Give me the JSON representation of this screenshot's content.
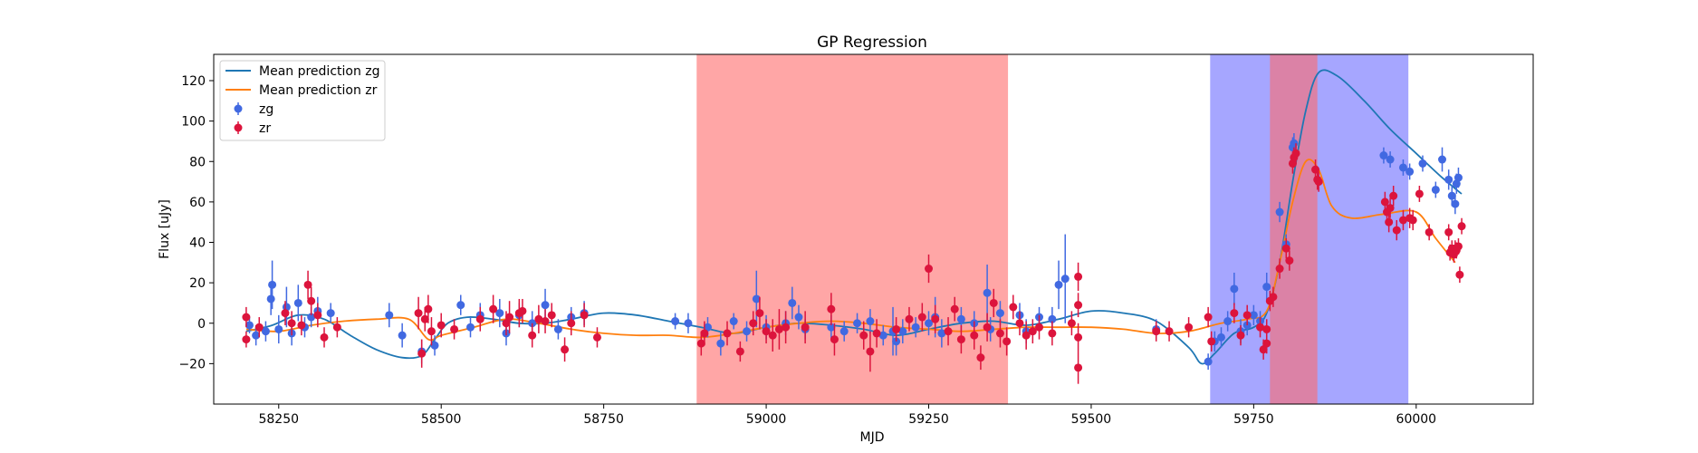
{
  "chart_data": {
    "type": "scatter",
    "title": "GP Regression",
    "xlabel": "MJD",
    "ylabel": "Flux [uJy]",
    "xlim": [
      58150,
      60180
    ],
    "ylim": [
      -40,
      133
    ],
    "xticks": [
      58250,
      58500,
      58750,
      59000,
      59250,
      59500,
      59750,
      60000
    ],
    "yticks": [
      -20,
      0,
      20,
      40,
      60,
      80,
      100,
      120
    ],
    "grid": false,
    "legend_position": "top-left",
    "shaded_regions": [
      {
        "x0": 58893,
        "x1": 59372,
        "color": "#ff6b6b",
        "opacity": 0.6
      },
      {
        "x0": 59683,
        "x1": 59988,
        "color": "#6b6bff",
        "opacity": 0.6
      },
      {
        "x0": 59775,
        "x1": 59848,
        "color": "#ff6b6b",
        "opacity": 0.6
      }
    ],
    "lines": [
      {
        "name": "Mean prediction zg",
        "color": "#1f77b4",
        "x": [
          58200,
          58240,
          58280,
          58320,
          58360,
          58400,
          58440,
          58470,
          58490,
          58510,
          58540,
          58580,
          58620,
          58660,
          58700,
          58750,
          58800,
          58850,
          58900,
          58950,
          59000,
          59050,
          59100,
          59150,
          59200,
          59250,
          59300,
          59350,
          59400,
          59450,
          59500,
          59550,
          59600,
          59650,
          59670,
          59690,
          59720,
          59750,
          59770,
          59790,
          59810,
          59830,
          59850,
          59880,
          59920,
          59960,
          60000,
          60040,
          60070
        ],
        "y": [
          -4,
          -1,
          4,
          2,
          -6,
          -13,
          -17,
          -16,
          -8,
          0,
          3,
          2,
          0,
          0,
          2,
          5,
          4,
          1,
          -2,
          -5,
          -2,
          0,
          -1,
          -3,
          -6,
          -3,
          0,
          1,
          -1,
          2,
          6,
          5,
          1,
          -12,
          -20,
          -15,
          -5,
          -2,
          5,
          30,
          70,
          105,
          124,
          122,
          110,
          96,
          84,
          72,
          64
        ]
      },
      {
        "name": "Mean prediction zr",
        "color": "#ff7f0e",
        "x": [
          58200,
          58250,
          58300,
          58350,
          58400,
          58450,
          58480,
          58500,
          58550,
          58600,
          58650,
          58700,
          58750,
          58800,
          58850,
          58900,
          58950,
          59000,
          59050,
          59100,
          59150,
          59200,
          59250,
          59300,
          59350,
          59400,
          59450,
          59500,
          59550,
          59600,
          59650,
          59700,
          59740,
          59770,
          59790,
          59810,
          59830,
          59850,
          59870,
          59900,
          59950,
          60000,
          60030,
          60060
        ],
        "y": [
          -3,
          -4,
          -1,
          1,
          2,
          2,
          -8,
          -6,
          -2,
          2,
          0,
          -3,
          -5,
          -6,
          -6,
          -7,
          -5,
          -2,
          0,
          1,
          0,
          -2,
          -3,
          -4,
          -3,
          -2,
          -2,
          -2,
          -3,
          -5,
          -4,
          0,
          2,
          6,
          30,
          60,
          80,
          76,
          58,
          52,
          54,
          55,
          42,
          30
        ]
      }
    ],
    "series": [
      {
        "name": "zg",
        "color": "#4169e1",
        "points": [
          [
            58205,
            -1,
            4
          ],
          [
            58215,
            -6,
            5
          ],
          [
            58230,
            -4,
            5
          ],
          [
            58240,
            19,
            12
          ],
          [
            58238,
            12,
            8
          ],
          [
            58250,
            -3,
            7
          ],
          [
            58262,
            8,
            10
          ],
          [
            58270,
            -5,
            6
          ],
          [
            58280,
            10,
            9
          ],
          [
            58290,
            -2,
            5
          ],
          [
            58300,
            3,
            5
          ],
          [
            58310,
            6,
            7
          ],
          [
            58330,
            5,
            5
          ],
          [
            58420,
            4,
            6
          ],
          [
            58440,
            -6,
            6
          ],
          [
            58470,
            -14,
            6
          ],
          [
            58490,
            -11,
            5
          ],
          [
            58530,
            9,
            5
          ],
          [
            58545,
            -2,
            5
          ],
          [
            58560,
            4,
            6
          ],
          [
            58590,
            5,
            7
          ],
          [
            58600,
            -5,
            6
          ],
          [
            58620,
            4,
            6
          ],
          [
            58640,
            0,
            6
          ],
          [
            58660,
            9,
            8
          ],
          [
            58680,
            -3,
            5
          ],
          [
            58700,
            3,
            5
          ],
          [
            58720,
            5,
            6
          ],
          [
            58860,
            1,
            4
          ],
          [
            58880,
            0,
            5
          ],
          [
            58910,
            -2,
            5
          ],
          [
            58930,
            -10,
            6
          ],
          [
            58950,
            1,
            4
          ],
          [
            58970,
            -4,
            5
          ],
          [
            58985,
            12,
            14
          ],
          [
            59000,
            -2,
            6
          ],
          [
            59030,
            0,
            6
          ],
          [
            59040,
            10,
            8
          ],
          [
            59050,
            3,
            6
          ],
          [
            59060,
            -3,
            5
          ],
          [
            59100,
            -2,
            6
          ],
          [
            59120,
            -4,
            5
          ],
          [
            59140,
            0,
            5
          ],
          [
            59160,
            1,
            6
          ],
          [
            59180,
            -6,
            5
          ],
          [
            59195,
            -4,
            12
          ],
          [
            59200,
            -9,
            7
          ],
          [
            59210,
            -4,
            6
          ],
          [
            59230,
            -2,
            5
          ],
          [
            59250,
            0,
            6
          ],
          [
            59260,
            3,
            10
          ],
          [
            59270,
            -5,
            7
          ],
          [
            59300,
            2,
            6
          ],
          [
            59320,
            0,
            6
          ],
          [
            59340,
            15,
            14
          ],
          [
            59345,
            -3,
            6
          ],
          [
            59360,
            5,
            6
          ],
          [
            59390,
            4,
            6
          ],
          [
            59400,
            -4,
            6
          ],
          [
            59420,
            3,
            5
          ],
          [
            59440,
            2,
            6
          ],
          [
            59450,
            19,
            12
          ],
          [
            59460,
            22,
            22
          ],
          [
            59600,
            -3,
            5
          ],
          [
            59680,
            -19,
            4
          ],
          [
            59690,
            -9,
            5
          ],
          [
            59700,
            -7,
            5
          ],
          [
            59710,
            1,
            5
          ],
          [
            59720,
            17,
            8
          ],
          [
            59730,
            -4,
            6
          ],
          [
            59740,
            -1,
            5
          ],
          [
            59750,
            4,
            5
          ],
          [
            59760,
            1,
            5
          ],
          [
            59770,
            18,
            7
          ],
          [
            59790,
            55,
            5
          ],
          [
            59800,
            39,
            5
          ],
          [
            59810,
            87,
            5
          ],
          [
            59812,
            89,
            5
          ],
          [
            59950,
            83,
            4
          ],
          [
            59960,
            81,
            4
          ],
          [
            59980,
            77,
            4
          ],
          [
            59990,
            75,
            4
          ],
          [
            60010,
            79,
            4
          ],
          [
            60030,
            66,
            4
          ],
          [
            60040,
            81,
            6
          ],
          [
            60050,
            71,
            5
          ],
          [
            60055,
            63,
            5
          ],
          [
            60060,
            59,
            5
          ],
          [
            60062,
            69,
            5
          ],
          [
            60065,
            72,
            5
          ]
        ]
      },
      {
        "name": "zr",
        "color": "#dc143c",
        "points": [
          [
            58200,
            3,
            5
          ],
          [
            58200,
            -8,
            4
          ],
          [
            58220,
            -2,
            5
          ],
          [
            58260,
            5,
            6
          ],
          [
            58270,
            0,
            6
          ],
          [
            58285,
            -1,
            5
          ],
          [
            58295,
            19,
            7
          ],
          [
            58300,
            11,
            7
          ],
          [
            58310,
            4,
            6
          ],
          [
            58320,
            -7,
            5
          ],
          [
            58340,
            -2,
            5
          ],
          [
            58465,
            5,
            8
          ],
          [
            58470,
            -15,
            7
          ],
          [
            58475,
            2,
            6
          ],
          [
            58480,
            7,
            7
          ],
          [
            58485,
            -4,
            7
          ],
          [
            58500,
            -1,
            6
          ],
          [
            58520,
            -3,
            5
          ],
          [
            58560,
            2,
            6
          ],
          [
            58580,
            7,
            7
          ],
          [
            58600,
            0,
            6
          ],
          [
            58605,
            3,
            8
          ],
          [
            58620,
            5,
            7
          ],
          [
            58625,
            6,
            6
          ],
          [
            58640,
            -6,
            6
          ],
          [
            58650,
            2,
            7
          ],
          [
            58660,
            1,
            6
          ],
          [
            58670,
            4,
            6
          ],
          [
            58690,
            -13,
            6
          ],
          [
            58700,
            0,
            6
          ],
          [
            58720,
            4,
            6
          ],
          [
            58740,
            -7,
            5
          ],
          [
            58900,
            -10,
            6
          ],
          [
            58905,
            -5,
            6
          ],
          [
            58940,
            -5,
            6
          ],
          [
            58960,
            -14,
            5
          ],
          [
            58980,
            0,
            6
          ],
          [
            58990,
            5,
            8
          ],
          [
            59000,
            -4,
            6
          ],
          [
            59010,
            -6,
            8
          ],
          [
            59020,
            -3,
            10
          ],
          [
            59030,
            -2,
            8
          ],
          [
            59060,
            -2,
            8
          ],
          [
            59100,
            7,
            8
          ],
          [
            59105,
            -8,
            8
          ],
          [
            59150,
            -6,
            7
          ],
          [
            59160,
            -14,
            10
          ],
          [
            59170,
            -5,
            7
          ],
          [
            59200,
            -3,
            6
          ],
          [
            59220,
            2,
            6
          ],
          [
            59240,
            3,
            7
          ],
          [
            59250,
            27,
            7
          ],
          [
            59260,
            2,
            7
          ],
          [
            59280,
            -4,
            7
          ],
          [
            59290,
            7,
            6
          ],
          [
            59300,
            -8,
            7
          ],
          [
            59320,
            -6,
            7
          ],
          [
            59330,
            -17,
            6
          ],
          [
            59340,
            -2,
            7
          ],
          [
            59350,
            10,
            7
          ],
          [
            59360,
            -5,
            7
          ],
          [
            59370,
            -9,
            7
          ],
          [
            59380,
            8,
            6
          ],
          [
            59390,
            0,
            6
          ],
          [
            59400,
            -6,
            7
          ],
          [
            59410,
            -4,
            6
          ],
          [
            59420,
            -2,
            6
          ],
          [
            59440,
            -5,
            6
          ],
          [
            59470,
            0,
            6
          ],
          [
            59480,
            9,
            6
          ],
          [
            59480,
            -7,
            7
          ],
          [
            59480,
            -22,
            8
          ],
          [
            59480,
            23,
            7
          ],
          [
            59600,
            -4,
            5
          ],
          [
            59620,
            -4,
            5
          ],
          [
            59650,
            -2,
            5
          ],
          [
            59680,
            3,
            5
          ],
          [
            59685,
            -9,
            5
          ],
          [
            59720,
            5,
            5
          ],
          [
            59730,
            -6,
            5
          ],
          [
            59740,
            4,
            5
          ],
          [
            59760,
            -2,
            5
          ],
          [
            59765,
            -13,
            5
          ],
          [
            59770,
            -3,
            5
          ],
          [
            59770,
            -10,
            5
          ],
          [
            59775,
            11,
            5
          ],
          [
            59780,
            13,
            5
          ],
          [
            59790,
            27,
            5
          ],
          [
            59800,
            37,
            5
          ],
          [
            59805,
            31,
            5
          ],
          [
            59810,
            79,
            5
          ],
          [
            59812,
            82,
            5
          ],
          [
            59815,
            84,
            5
          ],
          [
            59845,
            76,
            5
          ],
          [
            59848,
            71,
            5
          ],
          [
            59850,
            70,
            5
          ],
          [
            59952,
            60,
            5
          ],
          [
            59955,
            55,
            5
          ],
          [
            59958,
            50,
            5
          ],
          [
            59960,
            57,
            5
          ],
          [
            59965,
            63,
            5
          ],
          [
            59970,
            46,
            5
          ],
          [
            59980,
            51,
            5
          ],
          [
            59990,
            52,
            5
          ],
          [
            59995,
            51,
            5
          ],
          [
            60005,
            64,
            4
          ],
          [
            60020,
            45,
            4
          ],
          [
            60050,
            45,
            4
          ],
          [
            60052,
            35,
            4
          ],
          [
            60055,
            37,
            4
          ],
          [
            60058,
            34,
            4
          ],
          [
            60060,
            37,
            4
          ],
          [
            60062,
            36,
            4
          ],
          [
            60065,
            38,
            4
          ],
          [
            60067,
            24,
            4
          ],
          [
            60070,
            48,
            4
          ]
        ]
      }
    ]
  }
}
